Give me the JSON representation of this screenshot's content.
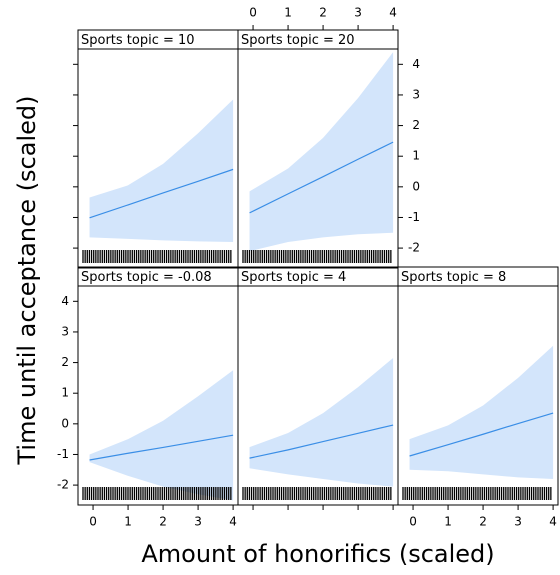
{
  "chart_data": {
    "type": "line",
    "xlabel": "Amount of honorifics (scaled)",
    "ylabel": "Time until acceptance (scaled)",
    "xlim": [
      -0.43,
      4.14
    ],
    "ylim": [
      -2.65,
      4.5
    ],
    "xticks": [
      0,
      1,
      2,
      3,
      4
    ],
    "yticks": [
      -2,
      -1,
      0,
      1,
      2,
      3,
      4
    ],
    "color": "#3a8ee6",
    "band_color": "#d3e5fb",
    "panels": [
      {
        "title": "Sports topic = -0.08",
        "x": [
          -0.1,
          1,
          2,
          3,
          4
        ],
        "fit": [
          -1.18,
          -0.96,
          -0.77,
          -0.57,
          -0.37
        ],
        "lower": [
          -1.25,
          -1.7,
          -2.05,
          -2.3,
          -2.5
        ],
        "upper": [
          -1.0,
          -0.5,
          0.1,
          0.9,
          1.75
        ]
      },
      {
        "title": "Sports topic = 4",
        "x": [
          -0.1,
          1,
          2,
          3,
          4
        ],
        "fit": [
          -1.12,
          -0.85,
          -0.58,
          -0.31,
          -0.04
        ],
        "lower": [
          -1.45,
          -1.65,
          -1.8,
          -1.95,
          -2.05
        ],
        "upper": [
          -0.76,
          -0.3,
          0.35,
          1.2,
          2.15
        ]
      },
      {
        "title": "Sports topic = 8",
        "x": [
          -0.1,
          1,
          2,
          3,
          4
        ],
        "fit": [
          -1.05,
          -0.68,
          -0.34,
          0.01,
          0.35
        ],
        "lower": [
          -1.5,
          -1.55,
          -1.65,
          -1.75,
          -1.8
        ],
        "upper": [
          -0.5,
          -0.05,
          0.6,
          1.5,
          2.55
        ]
      },
      {
        "title": "Sports topic = 10",
        "x": [
          -0.1,
          1,
          2,
          3,
          4
        ],
        "fit": [
          -1.01,
          -0.59,
          -0.2,
          0.18,
          0.57
        ],
        "lower": [
          -1.65,
          -1.7,
          -1.75,
          -1.78,
          -1.8
        ],
        "upper": [
          -0.35,
          0.05,
          0.75,
          1.75,
          2.85
        ]
      },
      {
        "title": "Sports topic = 20",
        "x": [
          -0.1,
          1,
          2,
          3,
          4
        ],
        "fit": [
          -0.85,
          -0.23,
          0.33,
          0.9,
          1.46
        ],
        "lower": [
          -2.1,
          -1.8,
          -1.65,
          -1.55,
          -1.5
        ],
        "upper": [
          -0.15,
          0.6,
          1.6,
          2.9,
          4.4
        ]
      }
    ]
  }
}
